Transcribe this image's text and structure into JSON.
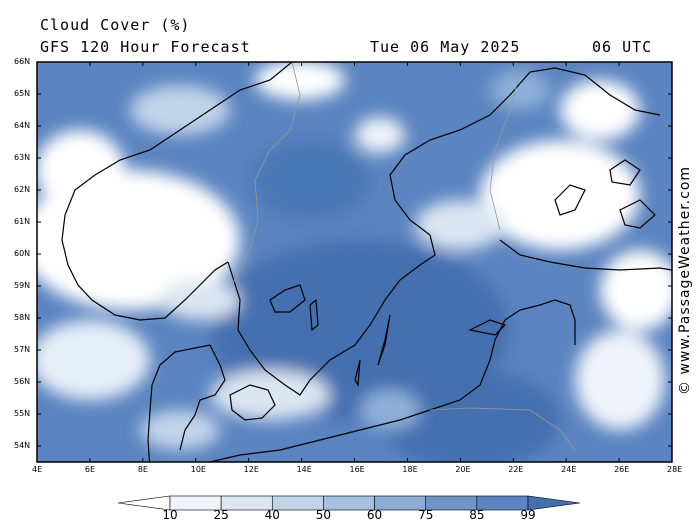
{
  "title": {
    "line1": "Cloud Cover (%)",
    "model": "GFS 120 Hour Forecast",
    "date": "Tue 06 May 2025",
    "time": "06 UTC"
  },
  "credit": "© www.PassageWeather.com",
  "map": {
    "lon_range": [
      4,
      28
    ],
    "lat_range": [
      53.6,
      66
    ],
    "lon_ticks": [
      "4E",
      "6E",
      "8E",
      "10E",
      "12E",
      "14E",
      "16E",
      "18E",
      "20E",
      "22E",
      "24E",
      "26E",
      "28E"
    ],
    "lat_ticks": [
      "66N",
      "65N",
      "64N",
      "63N",
      "62N",
      "61N",
      "60N",
      "59N",
      "58N",
      "57N",
      "56N",
      "55N",
      "54N"
    ],
    "colors": {
      "clear": "#ffffff",
      "low": "#dce6f2",
      "mid": "#8fb0d8",
      "high": "#5b84c0",
      "full": "#4470b0",
      "land_line": "#000000"
    }
  },
  "colorbar": {
    "levels": [
      "10",
      "25",
      "40",
      "50",
      "60",
      "75",
      "85",
      "99"
    ],
    "colors": [
      "#ffffff",
      "#f0f4fa",
      "#dce6f2",
      "#c2d4ea",
      "#a6c0e0",
      "#8eadd6",
      "#6f95c8",
      "#5b84c0",
      "#4470b0"
    ]
  }
}
